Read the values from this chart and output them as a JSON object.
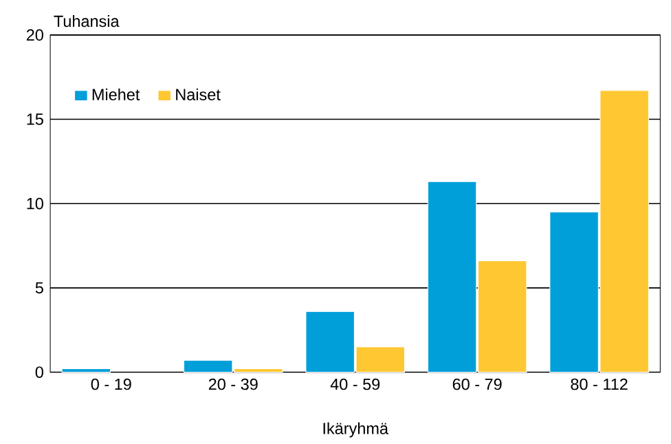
{
  "chart_data": {
    "type": "bar",
    "ylabel": "Tuhansia",
    "xlabel": "Ikäryhmä",
    "categories": [
      "0 - 19",
      "20 - 39",
      "40 - 59",
      "60 - 79",
      "80 - 112"
    ],
    "series": [
      {
        "name": "Miehet",
        "color": "#009fda",
        "values": [
          0.2,
          0.7,
          3.6,
          11.3,
          9.5
        ]
      },
      {
        "name": "Naiset",
        "color": "#ffc832",
        "values": [
          null,
          0.2,
          1.5,
          6.6,
          16.7
        ]
      }
    ],
    "ylim": [
      0,
      20
    ],
    "yticks": [
      0,
      5,
      10,
      15,
      20
    ],
    "grid": "y",
    "legend": "top left"
  }
}
